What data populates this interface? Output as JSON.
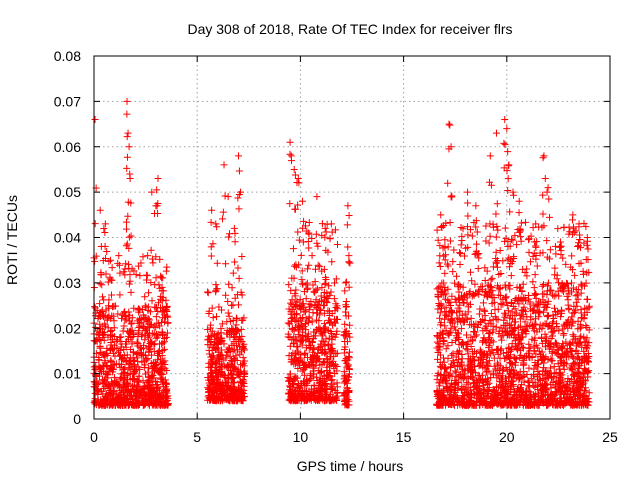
{
  "chart_data": {
    "type": "scatter",
    "title": "Day 308 of 2018, Rate Of TEC Index for receiver flrs",
    "xlabel": "GPS time / hours",
    "ylabel": "ROTI / TECUs",
    "xlim": [
      0,
      25
    ],
    "ylim": [
      0,
      0.08
    ],
    "x_ticks": [
      0,
      5,
      10,
      15,
      20,
      25
    ],
    "x_tick_labels": [
      "0",
      "5",
      "10",
      "15",
      "20",
      "25"
    ],
    "y_ticks": [
      0,
      0.01,
      0.02,
      0.03,
      0.04,
      0.05,
      0.06,
      0.07,
      0.08
    ],
    "y_tick_labels": [
      "0",
      "0.01",
      "0.02",
      "0.03",
      "0.04",
      "0.05",
      "0.06",
      "0.07",
      "0.08"
    ],
    "grid": true,
    "marker": "+",
    "color": "#ff0000",
    "series": [
      {
        "name": "ROTI",
        "segments": [
          {
            "x_range": [
              0.0,
              3.6
            ],
            "typical_range": [
              0.003,
              0.025
            ],
            "peaks": [
              [
                0.05,
                0.066
              ],
              [
                0.3,
                0.046
              ],
              [
                0.55,
                0.043
              ],
              [
                0.8,
                0.035
              ],
              [
                1.2,
                0.036
              ],
              [
                1.6,
                0.07
              ],
              [
                1.65,
                0.063
              ],
              [
                1.7,
                0.06
              ],
              [
                1.75,
                0.053
              ],
              [
                2.6,
                0.036
              ],
              [
                2.8,
                0.05
              ],
              [
                3.0,
                0.047
              ],
              [
                3.1,
                0.053
              ],
              [
                3.3,
                0.029
              ]
            ]
          },
          {
            "x_range": [
              5.5,
              7.3
            ],
            "typical_range": [
              0.004,
              0.02
            ],
            "peaks": [
              [
                5.7,
                0.046
              ],
              [
                5.9,
                0.043
              ],
              [
                6.3,
                0.056
              ],
              [
                6.5,
                0.049
              ],
              [
                6.8,
                0.042
              ],
              [
                7.0,
                0.058
              ],
              [
                7.1,
                0.05
              ]
            ]
          },
          {
            "x_range": [
              9.4,
              11.8
            ],
            "typical_range": [
              0.004,
              0.03
            ],
            "peaks": [
              [
                9.5,
                0.061
              ],
              [
                9.7,
                0.055
              ],
              [
                9.9,
                0.053
              ],
              [
                10.1,
                0.048
              ],
              [
                10.4,
                0.041
              ],
              [
                10.8,
                0.049
              ],
              [
                11.2,
                0.042
              ],
              [
                11.5,
                0.043
              ]
            ]
          },
          {
            "x_range": [
              12.1,
              12.4
            ],
            "typical_range": [
              0.003,
              0.02
            ],
            "peaks": [
              [
                12.3,
                0.047
              ],
              [
                12.35,
                0.036
              ],
              [
                12.2,
                0.03
              ]
            ]
          },
          {
            "x_range": [
              16.6,
              24.0
            ],
            "typical_range": [
              0.003,
              0.03
            ],
            "peaks": [
              [
                16.8,
                0.045
              ],
              [
                17.0,
                0.038
              ],
              [
                17.2,
                0.065
              ],
              [
                17.3,
                0.06
              ],
              [
                18.1,
                0.05
              ],
              [
                18.5,
                0.047
              ],
              [
                19.2,
                0.058
              ],
              [
                19.5,
                0.063
              ],
              [
                19.9,
                0.066
              ],
              [
                20.0,
                0.064
              ],
              [
                20.1,
                0.056
              ],
              [
                20.3,
                0.05
              ],
              [
                20.6,
                0.048
              ],
              [
                21.4,
                0.043
              ],
              [
                21.8,
                0.058
              ],
              [
                22.0,
                0.051
              ],
              [
                22.6,
                0.039
              ],
              [
                23.2,
                0.045
              ],
              [
                23.5,
                0.043
              ],
              [
                23.9,
                0.04
              ]
            ]
          }
        ]
      }
    ]
  }
}
